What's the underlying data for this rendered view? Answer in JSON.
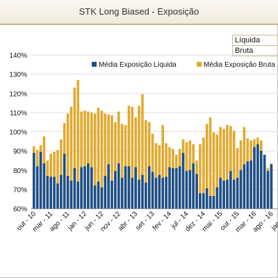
{
  "header": {
    "title": "STK Long Biased - Exposição"
  },
  "view_options": [
    "Líquida",
    "Bruta"
  ],
  "colors": {
    "liquida": "#1b4f8a",
    "bruta": "#e0aa30",
    "grid": "#dddddd"
  },
  "chart_data": {
    "type": "bar",
    "title": "",
    "xlabel": "",
    "ylabel": "",
    "ylim": [
      0.6,
      1.4
    ],
    "yticks": [
      "60%",
      "70%",
      "80%",
      "90%",
      "100%",
      "110%",
      "120%",
      "130%",
      "140%"
    ],
    "xtick_labels": [
      "out - 10",
      "mar - 11",
      "ago - 11",
      "jan - 12",
      "jun - 12",
      "nov - 12",
      "abr - 13",
      "set - 13",
      "fev - 14",
      "jul - 14",
      "dez - 14",
      "mai - 15",
      "out - 15",
      "mar - 16",
      "ago - 16",
      "jan - 17"
    ],
    "legend_position": "top",
    "series": [
      {
        "name": "Média Exposição Líquida",
        "values": [
          0.89,
          0.82,
          0.895,
          0.835,
          0.77,
          0.765,
          0.765,
          0.73,
          0.775,
          0.885,
          0.77,
          0.745,
          0.81,
          0.74,
          0.815,
          0.82,
          0.835,
          0.815,
          0.72,
          0.74,
          0.71,
          0.77,
          0.83,
          0.745,
          0.795,
          0.835,
          0.76,
          0.82,
          0.82,
          0.76,
          0.815,
          0.75,
          0.775,
          0.735,
          0.82,
          0.79,
          0.76,
          0.775,
          0.76,
          0.765,
          0.815,
          0.81,
          0.81,
          0.82,
          0.89,
          0.795,
          0.8,
          0.835,
          0.78,
          0.68,
          0.68,
          0.705,
          0.665,
          0.665,
          0.71,
          0.76,
          0.745,
          0.75,
          0.795,
          0.75,
          0.76,
          0.8,
          0.83,
          0.845,
          0.85,
          0.92,
          0.935,
          0.9,
          0.88,
          0.795,
          0.83
        ]
      },
      {
        "name": "Média Exposição Bruta",
        "values": [
          0.925,
          0.905,
          0.93,
          0.975,
          0.85,
          0.885,
          0.895,
          0.905,
          0.96,
          1.045,
          1.095,
          1.13,
          1.23,
          1.27,
          1.105,
          1.11,
          1.105,
          1.1,
          1.095,
          1.125,
          1.11,
          1.095,
          1.09,
          1.085,
          1.05,
          1.105,
          1.04,
          1.035,
          1.135,
          1.13,
          1.075,
          1.135,
          1.195,
          1.06,
          1.05,
          0.99,
          0.94,
          0.93,
          1.035,
          0.94,
          0.92,
          0.91,
          0.88,
          0.91,
          0.96,
          0.945,
          0.955,
          0.935,
          0.85,
          0.935,
          0.97,
          1.04,
          1.075,
          0.995,
          0.985,
          1.025,
          1.015,
          1.035,
          1.03,
          1.005,
          0.915,
          0.955,
          1.025,
          0.965,
          0.955,
          0.96,
          0.97,
          0.955,
          0.86,
          0.81,
          0.835
        ]
      }
    ]
  }
}
